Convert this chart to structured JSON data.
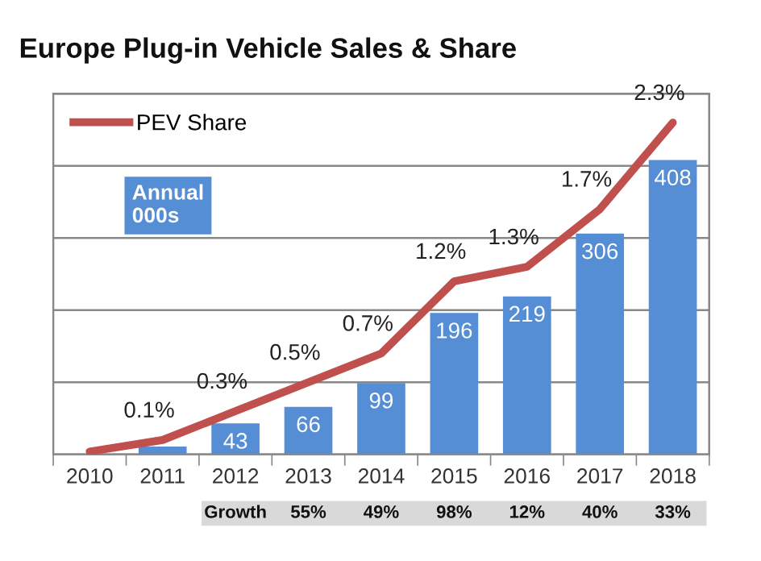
{
  "chart_data": {
    "type": "bar",
    "title": "Europe Plug-in Vehicle Sales & Share",
    "categories": [
      "2010",
      "2011",
      "2012",
      "2013",
      "2014",
      "2015",
      "2016",
      "2017",
      "2018"
    ],
    "series": [
      {
        "color": "#558ed5",
        "values": [
          null,
          11,
          43,
          66,
          99,
          196,
          219,
          306,
          408
        ],
        "value_labels": [
          null,
          null,
          "43",
          "66",
          "99",
          "196",
          "219",
          "306",
          "408"
        ]
      },
      {
        "type": "line",
        "name": "PEV Share",
        "axis": "y2",
        "color": "#c0504d",
        "values": [
          0.02,
          0.1,
          0.3,
          0.5,
          0.7,
          1.2,
          1.3,
          1.7,
          2.3
        ],
        "value_labels": [
          null,
          "0.1%",
          "0.3%",
          "0.5%",
          "0.7%",
          "1.2%",
          "1.3%",
          "1.7%",
          "2.3%"
        ]
      }
    ],
    "ylim": [
      0,
      500
    ],
    "yticks": [
      {
        "value": 0,
        "label": null
      },
      {
        "value": 100,
        "label": null
      },
      {
        "value": 200,
        "label": null
      },
      {
        "value": 300,
        "label": null
      },
      {
        "value": 400,
        "label": null
      },
      {
        "value": 500,
        "label": null
      }
    ],
    "y2lim": [
      0,
      2.5
    ],
    "grid": "y",
    "legend": "top left",
    "tick_labels": "x",
    "marker": "none",
    "line_style": "solid",
    "annotations": [
      "Annual\n000s",
      "Growth",
      "55%",
      "49%",
      "98%",
      "12%",
      "40%",
      "33%"
    ]
  }
}
